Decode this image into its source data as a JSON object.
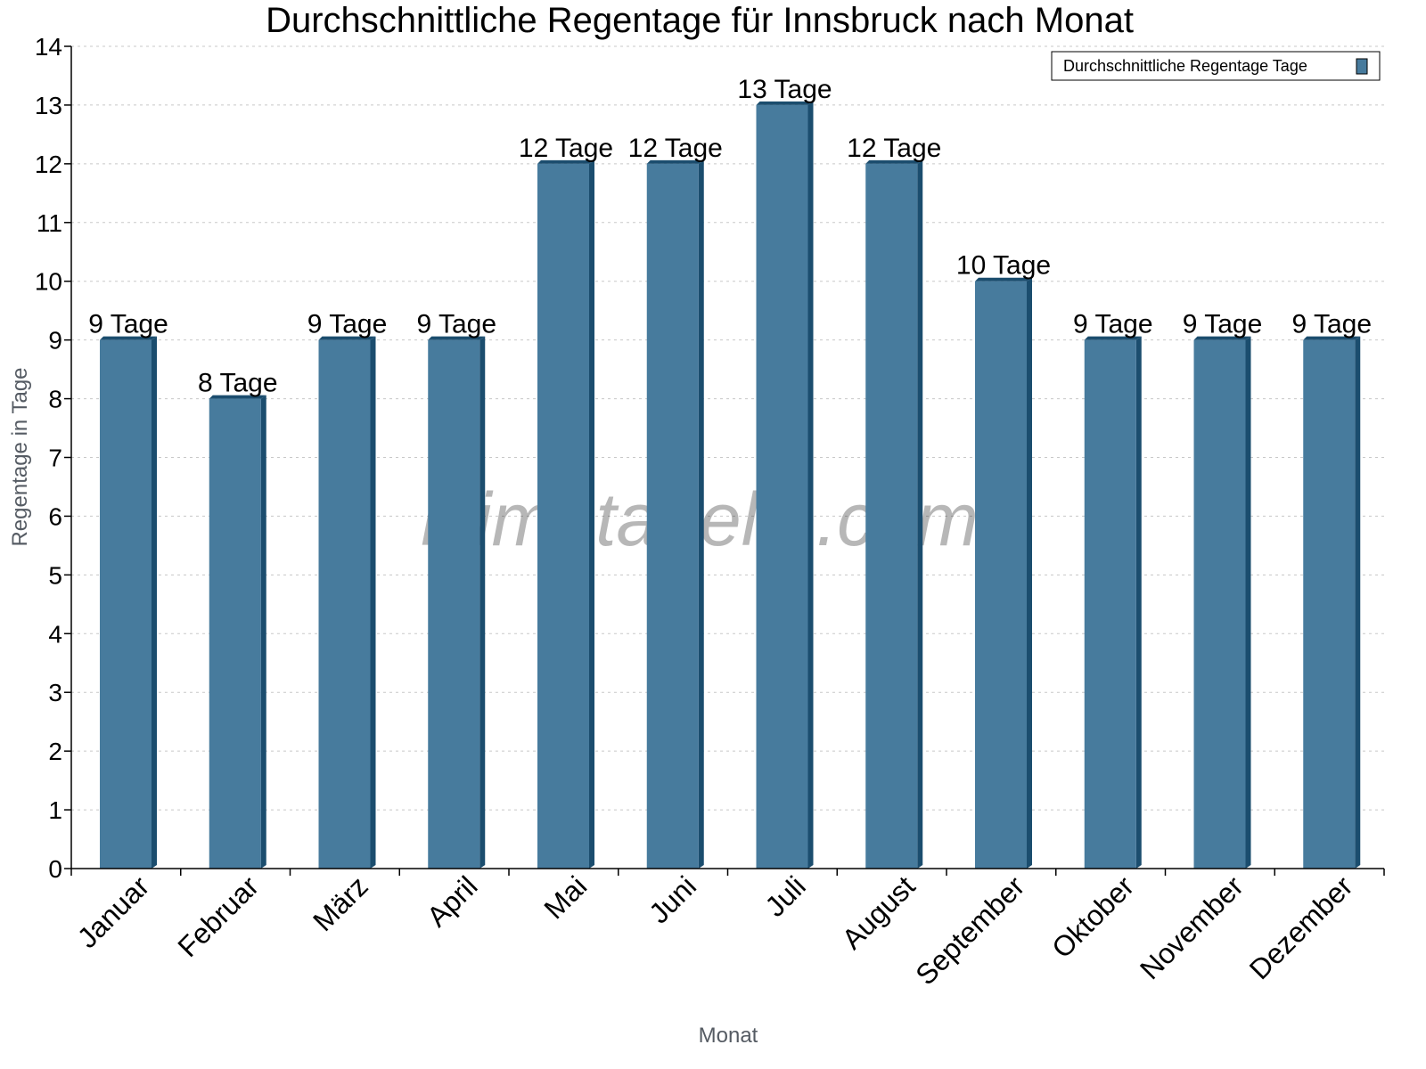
{
  "chart_data": {
    "type": "bar",
    "title": "Durchschnittliche Regentage für Innsbruck nach Monat",
    "xlabel": "Monat",
    "ylabel": "Regentage in Tage",
    "categories": [
      "Januar",
      "Februar",
      "März",
      "April",
      "Mai",
      "Juni",
      "Juli",
      "August",
      "September",
      "Oktober",
      "November",
      "Dezember"
    ],
    "series": [
      {
        "name": "Durchschnittliche Regentage Tage",
        "values": [
          9,
          8,
          9,
          9,
          12,
          12,
          13,
          12,
          10,
          9,
          9,
          9
        ]
      }
    ],
    "data_labels": [
      "9 Tage",
      "8 Tage",
      "9 Tage",
      "9 Tage",
      "12 Tage",
      "12 Tage",
      "13 Tage",
      "12 Tage",
      "10 Tage",
      "9 Tage",
      "9 Tage",
      "9 Tage"
    ],
    "ylim": [
      0,
      14
    ],
    "yticks": [
      0,
      1,
      2,
      3,
      4,
      5,
      6,
      7,
      8,
      9,
      10,
      11,
      12,
      13,
      14
    ],
    "grid": true,
    "legend_position": "top-right",
    "colors": {
      "bar": "#477b9d",
      "bar_side": "#1b4d6e",
      "grid": "#c8c8c8"
    },
    "watermark": "klimatabelle.com"
  }
}
